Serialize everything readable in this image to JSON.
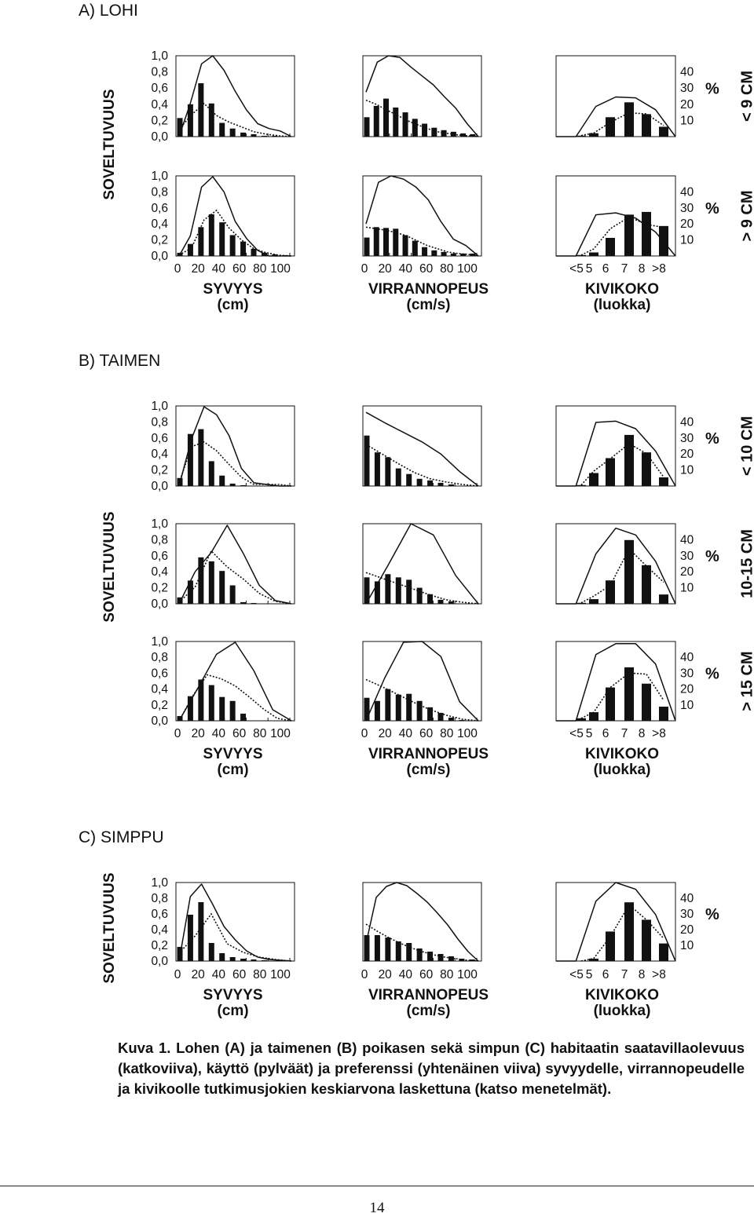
{
  "sections": [
    {
      "id": "lohi",
      "title": "A) LOHI",
      "ylabel": "SOVELTUVUUS",
      "rows": [
        {
          "size_label": "< 9 CM",
          "panels": [
            {
              "bars": [
                0.23,
                0.4,
                0.66,
                0.41,
                0.17,
                0.1,
                0.05,
                0.03,
                0.01,
                0.01,
                0.0
              ],
              "dotted": [
                0.09,
                0.27,
                0.41,
                0.26,
                0.18,
                0.12,
                0.06,
                0.03,
                0.01,
                0.0
              ],
              "solid": [
                0.0,
                0.41,
                0.9,
                1.0,
                0.82,
                0.56,
                0.33,
                0.16,
                0.1,
                0.07,
                0.0
              ]
            },
            {
              "bars": [
                0.24,
                0.38,
                0.47,
                0.36,
                0.3,
                0.22,
                0.16,
                0.11,
                0.08,
                0.06,
                0.04,
                0.03
              ],
              "dotted": [
                0.45,
                0.4,
                0.33,
                0.27,
                0.2,
                0.15,
                0.1,
                0.06,
                0.04,
                0.02,
                0.01,
                0.0
              ],
              "solid": [
                0.55,
                0.92,
                1.0,
                0.98,
                0.86,
                0.75,
                0.64,
                0.49,
                0.35,
                0.16,
                0.0
              ]
            },
            {
              "bars": [
                0.6,
                2.1,
                12.0,
                21.2,
                13.9,
                6.1
              ],
              "dotted": [
                0.7,
                2.2,
                8.9,
                14.7,
                14.1,
                6.9
              ],
              "solid": [
                0.0,
                0.0,
                18.7,
                24.5,
                24.0,
                16.6,
                0.0
              ]
            }
          ]
        },
        {
          "size_label": "> 9 CM",
          "panels": [
            {
              "bars": [
                0.04,
                0.15,
                0.36,
                0.52,
                0.42,
                0.26,
                0.18,
                0.09,
                0.04,
                0.02,
                0.01
              ],
              "dotted": [
                0.01,
                0.1,
                0.45,
                0.57,
                0.35,
                0.2,
                0.09,
                0.04,
                0.01,
                0.0
              ],
              "solid": [
                0.0,
                0.25,
                0.86,
                0.99,
                0.8,
                0.43,
                0.22,
                0.07,
                0.0,
                0.0,
                0.0
              ]
            },
            {
              "bars": [
                0.23,
                0.36,
                0.35,
                0.34,
                0.26,
                0.19,
                0.11,
                0.07,
                0.05,
                0.03,
                0.03,
                0.03
              ],
              "dotted": [
                0.36,
                0.34,
                0.32,
                0.29,
                0.25,
                0.19,
                0.13,
                0.09,
                0.05,
                0.03,
                0.02,
                0.0
              ],
              "solid": [
                0.4,
                0.92,
                1.0,
                0.96,
                0.86,
                0.7,
                0.43,
                0.21,
                0.13,
                0.0
              ]
            },
            {
              "bars": [
                0.6,
                2.2,
                11.3,
                25.8,
                27.5,
                18.7
              ],
              "dotted": [
                0.6,
                4.4,
                17.0,
                24.3,
                19.7,
                17.8
              ],
              "solid": [
                0.0,
                0.0,
                25.7,
                26.9,
                23.7,
                14.9,
                0.0
              ]
            }
          ]
        }
      ],
      "xaxes": [
        {
          "ticks": [
            "0",
            "20",
            "40",
            "60",
            "80",
            "100"
          ],
          "label": "SYVYYS",
          "unit": "(cm)"
        },
        {
          "ticks": [
            "0",
            "20",
            "40",
            "60",
            "80",
            "100"
          ],
          "label": "VIRRANNOPEUS",
          "unit": "(cm/s)"
        },
        {
          "ticks": [
            "<5",
            "5",
            "6",
            "7",
            "8",
            ">8"
          ],
          "label": "KIVIKOKO",
          "unit": "(luokka)"
        }
      ]
    },
    {
      "id": "taimen",
      "title": "B) TAIMEN",
      "ylabel": "SOVELTUVUUS",
      "rows": [
        {
          "size_label": "< 10 CM",
          "panels": [
            {
              "bars": [
                0.1,
                0.65,
                0.71,
                0.31,
                0.13,
                0.03,
                0.01,
                0.0
              ],
              "dotted": [
                0.04,
                0.49,
                0.55,
                0.44,
                0.27,
                0.11,
                0.02,
                0.02,
                0.02,
                0.0
              ],
              "solid": [
                0.0,
                0.59,
                0.99,
                0.89,
                0.63,
                0.22,
                0.04,
                0.02,
                0.0,
                0.0
              ]
            },
            {
              "bars": [
                0.63,
                0.42,
                0.36,
                0.22,
                0.15,
                0.09,
                0.07,
                0.04,
                0.02
              ],
              "dotted": [
                0.52,
                0.4,
                0.28,
                0.17,
                0.09,
                0.05,
                0.02,
                0.0
              ],
              "solid": [
                0.92,
                0.79,
                0.67,
                0.55,
                0.4,
                0.18,
                0.0
              ]
            },
            {
              "bars": [
                0.6,
                8.1,
                17.4,
                31.9,
                21.0,
                5.4
              ],
              "dotted": [
                0.6,
                9.3,
                17.0,
                26.5,
                20.3,
                5.6
              ],
              "solid": [
                0.0,
                0.0,
                39.7,
                40.5,
                35.8,
                21.8,
                0.0
              ]
            }
          ]
        },
        {
          "size_label": "10-15 CM",
          "panels": [
            {
              "bars": [
                0.08,
                0.29,
                0.58,
                0.53,
                0.41,
                0.23,
                0.02,
                0.01
              ],
              "dotted": [
                0.02,
                0.21,
                0.66,
                0.46,
                0.31,
                0.13,
                0.03,
                0.0
              ],
              "solid": [
                0.0,
                0.4,
                0.64,
                0.98,
                0.63,
                0.23,
                0.04,
                0.0
              ]
            },
            {
              "bars": [
                0.33,
                0.28,
                0.37,
                0.33,
                0.3,
                0.2,
                0.12,
                0.05,
                0.03
              ],
              "dotted": [
                0.39,
                0.32,
                0.25,
                0.18,
                0.11,
                0.05,
                0.02,
                0.0
              ],
              "solid": [
                0.0,
                0.49,
                1.0,
                0.86,
                0.35,
                0.0
              ]
            },
            {
              "bars": [
                0.6,
                2.9,
                14.6,
                39.8,
                24.1,
                5.8
              ],
              "dotted": [
                0.6,
                4.8,
                11.4,
                34.3,
                23.6,
                13.5
              ],
              "solid": [
                0.0,
                0.0,
                31.2,
                47.2,
                43.0,
                26.5,
                0.0
              ]
            }
          ]
        },
        {
          "size_label": "> 15 CM",
          "panels": [
            {
              "bars": [
                0.06,
                0.31,
                0.52,
                0.45,
                0.3,
                0.25,
                0.09
              ],
              "dotted": [
                0.0,
                0.32,
                0.58,
                0.53,
                0.44,
                0.3,
                0.15,
                0.03,
                0.0
              ],
              "solid": [
                0.0,
                0.41,
                0.84,
                0.99,
                0.63,
                0.14,
                0.0
              ]
            },
            {
              "bars": [
                0.29,
                0.25,
                0.4,
                0.33,
                0.34,
                0.25,
                0.17,
                0.1,
                0.04,
                0.01
              ],
              "dotted": [
                0.52,
                0.43,
                0.33,
                0.23,
                0.14,
                0.07,
                0.02,
                0.0
              ],
              "solid": [
                0.0,
                0.54,
                0.99,
                1.0,
                0.81,
                0.24,
                0.0
              ]
            },
            {
              "bars": [
                1.6,
                5.4,
                21.0,
                33.7,
                23.4,
                8.9
              ],
              "dotted": [
                1.6,
                5.4,
                21.0,
                30.1,
                29.4,
                12.9
              ],
              "solid": [
                0.0,
                0.0,
                41.8,
                48.6,
                48.6,
                35.8,
                0.0
              ]
            }
          ]
        }
      ],
      "xaxes": [
        {
          "ticks": [
            "0",
            "20",
            "40",
            "60",
            "80",
            "100"
          ],
          "label": "SYVYYS",
          "unit": "(cm)"
        },
        {
          "ticks": [
            "0",
            "20",
            "40",
            "60",
            "80",
            "100"
          ],
          "label": "VIRRANNOPEUS",
          "unit": "(cm/s)"
        },
        {
          "ticks": [
            "<5",
            "5",
            "6",
            "7",
            "8",
            ">8"
          ],
          "label": "KIVIKOKO",
          "unit": "(luokka)"
        }
      ]
    },
    {
      "id": "simppu",
      "title": "C) SIMPPU",
      "ylabel": "SOVELTUVUUS",
      "rows": [
        {
          "size_label": "",
          "panels": [
            {
              "bars": [
                0.18,
                0.59,
                0.75,
                0.23,
                0.1,
                0.05,
                0.03,
                0.02,
                0.01
              ],
              "dotted": [
                0.1,
                0.32,
                0.6,
                0.22,
                0.11,
                0.05,
                0.02,
                0.0
              ],
              "solid": [
                0.0,
                0.82,
                0.98,
                0.72,
                0.44,
                0.27,
                0.13,
                0.05,
                0.02,
                0.01,
                0.0
              ]
            },
            {
              "bars": [
                0.33,
                0.33,
                0.3,
                0.25,
                0.23,
                0.16,
                0.12,
                0.09,
                0.06,
                0.03,
                0.02
              ],
              "dotted": [
                0.47,
                0.38,
                0.3,
                0.23,
                0.17,
                0.12,
                0.08,
                0.05,
                0.03,
                0.01,
                0.0
              ],
              "solid": [
                0.22,
                0.81,
                0.95,
                1.0,
                0.96,
                0.86,
                0.75,
                0.61,
                0.46,
                0.28,
                0.12,
                0.0
              ]
            },
            {
              "bars": [
                0.0,
                1.5,
                18.8,
                37.4,
                26.3,
                11.2
              ],
              "dotted": [
                0.0,
                1.7,
                15.5,
                35.8,
                26.3,
                14.4
              ],
              "solid": [
                0.0,
                0.0,
                38.1,
                50.0,
                45.7,
                29.6,
                0.0
              ]
            }
          ]
        }
      ],
      "xaxes": [
        {
          "ticks": [
            "0",
            "20",
            "40",
            "60",
            "80",
            "100"
          ],
          "label": "SYVYYS",
          "unit": "(cm)"
        },
        {
          "ticks": [
            "0",
            "20",
            "40",
            "60",
            "80",
            "100"
          ],
          "label": "VIRRANNOPEUS",
          "unit": "(cm/s)"
        },
        {
          "ticks": [
            "<5",
            "5",
            "6",
            "7",
            "8",
            ">8"
          ],
          "label": "KIVIKOKO",
          "unit": "(luokka)"
        }
      ]
    }
  ],
  "left_yticks": [
    "1,0",
    "0,8",
    "0,6",
    "0,4",
    "0,2",
    "0,0"
  ],
  "right_yticks": [
    "40",
    "30",
    "20",
    "10"
  ],
  "right_unit": "%",
  "chart_data": {
    "type": "bar",
    "note_types": [
      "bars = käyttö",
      "dotted = saatavillaolevuus",
      "solid = preferenssi"
    ],
    "y_left": {
      "label": "SOVELTUVUUS",
      "range": [
        0,
        1
      ]
    },
    "y_right": {
      "unit": "%",
      "ticks": [
        10,
        20,
        30,
        40
      ]
    }
  },
  "caption": "Kuva 1. Lohen (A) ja taimenen (B) poikasen sekä simpun (C) habitaatin saatavillaolevuus (katkoviiva), käyttö (pylväät) ja preferenssi (yhtenäinen viiva) syvyydelle, virrannopeudelle ja kivikoolle tutkimusjokien keskiarvona laskettuna (katso menetelmät).",
  "page_number": "14"
}
